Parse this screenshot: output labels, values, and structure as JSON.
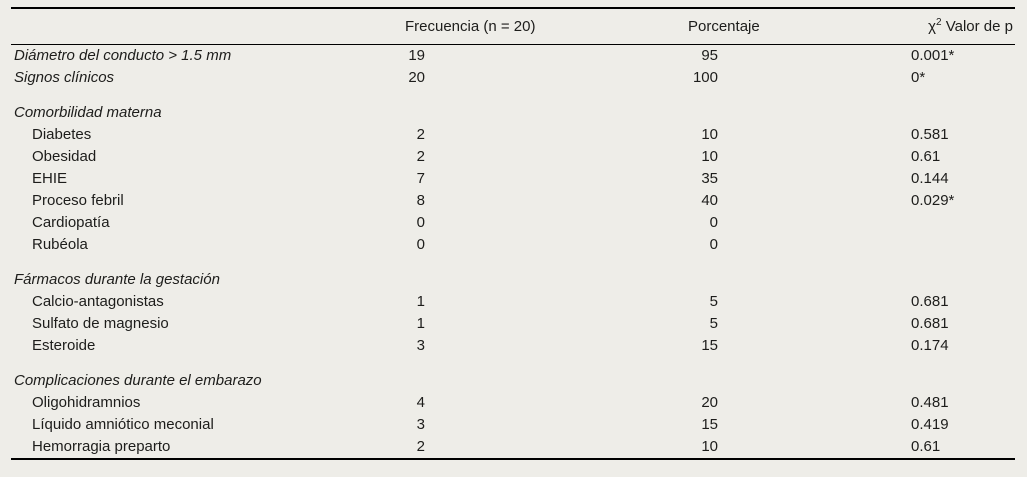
{
  "colors": {
    "background": "#eeede8",
    "text": "#1d1d1b",
    "rule": "#000000"
  },
  "table": {
    "header": {
      "label": "",
      "frecuencia": "Frecuencia (n = 20)",
      "porcentaje": "Porcentaje",
      "chi": {
        "base": "χ",
        "sup": "2",
        "rest": " Valor de p"
      }
    },
    "rows": [
      {
        "style": "top",
        "label": "Diámetro del conducto > 1.5 mm",
        "freq": "19",
        "pct": "95",
        "p": "0.001*"
      },
      {
        "style": "top",
        "label": "Signos clínicos",
        "freq": "20",
        "pct": "100",
        "p": "0*"
      },
      {
        "style": "section",
        "label": "Comorbilidad materna",
        "freq": "",
        "pct": "",
        "p": ""
      },
      {
        "style": "sub",
        "label": "Diabetes",
        "freq": "2",
        "pct": "10",
        "p": "0.581"
      },
      {
        "style": "sub",
        "label": "Obesidad",
        "freq": "2",
        "pct": "10",
        "p": "0.61"
      },
      {
        "style": "sub",
        "label": "EHIE",
        "freq": "7",
        "pct": "35",
        "p": "0.144"
      },
      {
        "style": "sub",
        "label": "Proceso febril",
        "freq": "8",
        "pct": "40",
        "p": "0.029*"
      },
      {
        "style": "sub",
        "label": "Cardiopatía",
        "freq": "0",
        "pct": "0",
        "p": ""
      },
      {
        "style": "sub",
        "label": "Rubéola",
        "freq": "0",
        "pct": "0",
        "p": ""
      },
      {
        "style": "section",
        "label": "Fármacos durante la gestación",
        "freq": "",
        "pct": "",
        "p": ""
      },
      {
        "style": "sub",
        "label": "Calcio-antagonistas",
        "freq": "1",
        "pct": "5",
        "p": "0.681"
      },
      {
        "style": "sub",
        "label": "Sulfato de magnesio",
        "freq": "1",
        "pct": "5",
        "p": "0.681"
      },
      {
        "style": "sub",
        "label": "Esteroide",
        "freq": "3",
        "pct": "15",
        "p": "0.174"
      },
      {
        "style": "section",
        "label": "Complicaciones durante el embarazo",
        "freq": "",
        "pct": "",
        "p": ""
      },
      {
        "style": "sub",
        "label": "Oligohidramnios",
        "freq": "4",
        "pct": "20",
        "p": "0.481"
      },
      {
        "style": "sub",
        "label": "Líquido amniótico meconial",
        "freq": "3",
        "pct": "15",
        "p": "0.419"
      },
      {
        "style": "sub",
        "label": "Hemorragia preparto",
        "freq": "2",
        "pct": "10",
        "p": "0.61"
      }
    ]
  }
}
